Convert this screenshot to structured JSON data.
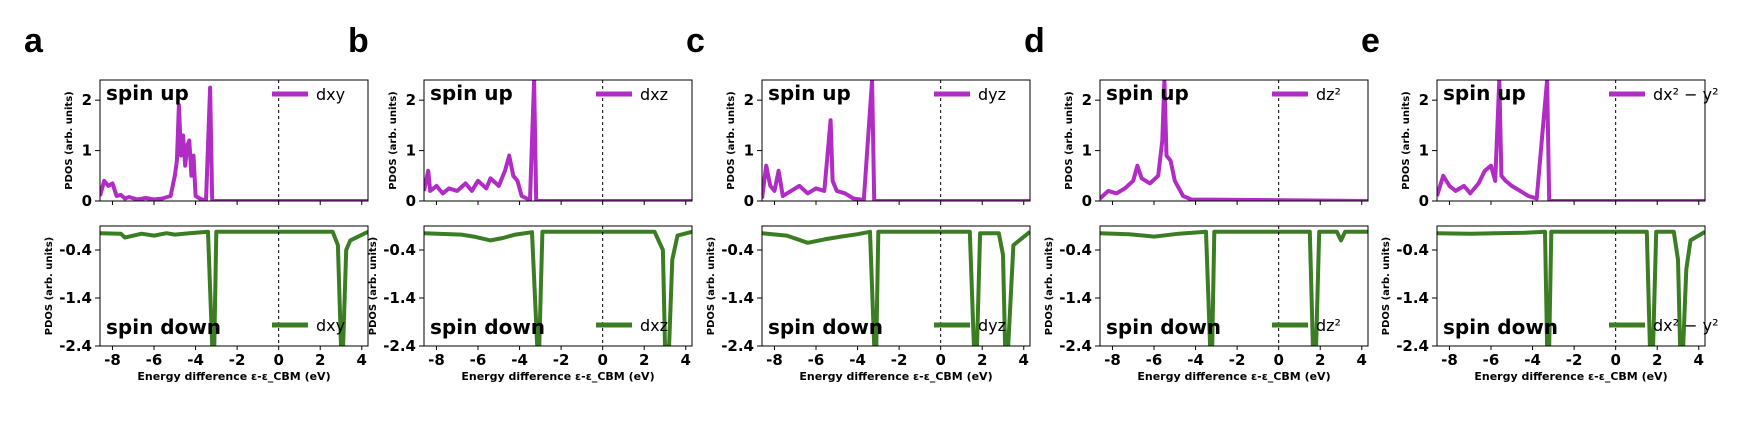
{
  "colors": {
    "up": "#b12cc4",
    "down": "#3b7d23",
    "axis": "#000000"
  },
  "chart_data": [
    {
      "type": "line",
      "panel_label": "a",
      "orbital_legend": "dxy",
      "xlabel": "Energy difference ε-ε_CBM (eV)",
      "ylabel": "PDOS (arb. units)",
      "xlim": [
        -8.6,
        4.3
      ],
      "xticks": [
        "-8",
        "-6",
        "-4",
        "-2",
        "0",
        "2",
        "4"
      ],
      "title_up": "spin up",
      "title_down": "spin down",
      "up": {
        "ylim": [
          0,
          2.4
        ],
        "yticks": [
          "0",
          "1",
          "2"
        ],
        "points": [
          [
            -8.6,
            0.1
          ],
          [
            -8.4,
            0.4
          ],
          [
            -8.2,
            0.3
          ],
          [
            -8.0,
            0.35
          ],
          [
            -7.8,
            0.1
          ],
          [
            -7.6,
            0.12
          ],
          [
            -7.4,
            0.05
          ],
          [
            -7.2,
            0.08
          ],
          [
            -6.8,
            0.03
          ],
          [
            -6.4,
            0.06
          ],
          [
            -6.0,
            0.03
          ],
          [
            -5.6,
            0.05
          ],
          [
            -5.2,
            0.1
          ],
          [
            -5.0,
            0.5
          ],
          [
            -4.9,
            0.8
          ],
          [
            -4.8,
            1.9
          ],
          [
            -4.7,
            0.9
          ],
          [
            -4.6,
            1.3
          ],
          [
            -4.5,
            0.7
          ],
          [
            -4.4,
            1.1
          ],
          [
            -4.3,
            1.2
          ],
          [
            -4.2,
            0.5
          ],
          [
            -4.1,
            0.9
          ],
          [
            -4.0,
            0.1
          ],
          [
            -3.8,
            0.05
          ],
          [
            -3.5,
            0.0
          ],
          [
            -3.3,
            2.25
          ],
          [
            -3.2,
            0.0
          ],
          [
            4.3,
            0.0
          ]
        ]
      },
      "down": {
        "ylim": [
          -2.4,
          0.1
        ],
        "yticks": [
          "-0.4",
          "-1.4",
          "-2.4"
        ],
        "points": [
          [
            -8.6,
            -0.05
          ],
          [
            -7.6,
            -0.06
          ],
          [
            -7.4,
            -0.14
          ],
          [
            -6.6,
            -0.06
          ],
          [
            -6.0,
            -0.1
          ],
          [
            -5.4,
            -0.05
          ],
          [
            -5.0,
            -0.08
          ],
          [
            -4.3,
            -0.05
          ],
          [
            -3.4,
            -0.02
          ],
          [
            -3.2,
            -2.4
          ],
          [
            -3.1,
            -2.4
          ],
          [
            -3.0,
            -0.02
          ],
          [
            2.6,
            -0.02
          ],
          [
            2.85,
            -0.3
          ],
          [
            3.0,
            -2.4
          ],
          [
            3.1,
            -2.4
          ],
          [
            3.25,
            -0.4
          ],
          [
            3.45,
            -0.2
          ],
          [
            4.3,
            -0.02
          ]
        ]
      }
    },
    {
      "type": "line",
      "panel_label": "b",
      "orbital_legend": "dxz",
      "xlabel": "Energy difference ε-ε_CBM (eV)",
      "ylabel": "PDOS (arb. units)",
      "xlim": [
        -8.6,
        4.3
      ],
      "xticks": [
        "-8",
        "-6",
        "-4",
        "-2",
        "0",
        "2",
        "4"
      ],
      "title_up": "spin up",
      "title_down": "spin down",
      "up": {
        "ylim": [
          0,
          2.4
        ],
        "yticks": [
          "0",
          "1",
          "2"
        ],
        "points": [
          [
            -8.6,
            0.2
          ],
          [
            -8.4,
            0.6
          ],
          [
            -8.3,
            0.2
          ],
          [
            -8.0,
            0.3
          ],
          [
            -7.7,
            0.15
          ],
          [
            -7.4,
            0.25
          ],
          [
            -7.0,
            0.2
          ],
          [
            -6.6,
            0.35
          ],
          [
            -6.3,
            0.2
          ],
          [
            -6.0,
            0.4
          ],
          [
            -5.6,
            0.25
          ],
          [
            -5.4,
            0.45
          ],
          [
            -5.0,
            0.3
          ],
          [
            -4.7,
            0.6
          ],
          [
            -4.5,
            0.9
          ],
          [
            -4.3,
            0.5
          ],
          [
            -4.1,
            0.4
          ],
          [
            -3.9,
            0.1
          ],
          [
            -3.5,
            0.02
          ],
          [
            -3.3,
            2.4
          ],
          [
            -3.2,
            0.0
          ],
          [
            4.3,
            0.0
          ]
        ]
      },
      "down": {
        "ylim": [
          -2.4,
          0.1
        ],
        "yticks": [
          "-0.4",
          "-1.4",
          "-2.4"
        ],
        "points": [
          [
            -8.6,
            -0.05
          ],
          [
            -6.8,
            -0.08
          ],
          [
            -6.2,
            -0.12
          ],
          [
            -5.4,
            -0.2
          ],
          [
            -4.8,
            -0.15
          ],
          [
            -4.2,
            -0.08
          ],
          [
            -3.4,
            -0.03
          ],
          [
            -3.15,
            -2.4
          ],
          [
            -3.05,
            -2.4
          ],
          [
            -2.9,
            -0.02
          ],
          [
            2.5,
            -0.02
          ],
          [
            2.9,
            -0.4
          ],
          [
            3.0,
            -2.4
          ],
          [
            3.2,
            -2.4
          ],
          [
            3.35,
            -0.6
          ],
          [
            3.6,
            -0.1
          ],
          [
            4.3,
            -0.02
          ]
        ]
      }
    },
    {
      "type": "line",
      "panel_label": "c",
      "orbital_legend": "dyz",
      "xlabel": "Energy difference ε-ε_CBM (eV)",
      "ylabel": "PDOS (arb. units)",
      "xlim": [
        -8.6,
        4.3
      ],
      "xticks": [
        "-8",
        "-6",
        "-4",
        "-2",
        "0",
        "2",
        "4"
      ],
      "title_up": "spin up",
      "title_down": "spin down",
      "up": {
        "ylim": [
          0,
          2.4
        ],
        "yticks": [
          "0",
          "1",
          "2"
        ],
        "points": [
          [
            -8.6,
            0.05
          ],
          [
            -8.4,
            0.7
          ],
          [
            -8.2,
            0.3
          ],
          [
            -8.0,
            0.2
          ],
          [
            -7.8,
            0.6
          ],
          [
            -7.6,
            0.1
          ],
          [
            -7.2,
            0.2
          ],
          [
            -6.8,
            0.3
          ],
          [
            -6.4,
            0.15
          ],
          [
            -6.0,
            0.25
          ],
          [
            -5.6,
            0.2
          ],
          [
            -5.3,
            1.6
          ],
          [
            -5.2,
            0.4
          ],
          [
            -5.0,
            0.2
          ],
          [
            -4.6,
            0.15
          ],
          [
            -4.2,
            0.05
          ],
          [
            -3.7,
            0.02
          ],
          [
            -3.3,
            2.4
          ],
          [
            -3.2,
            0.0
          ],
          [
            4.3,
            0.0
          ]
        ]
      },
      "down": {
        "ylim": [
          -2.4,
          0.1
        ],
        "yticks": [
          "-0.4",
          "-1.4",
          "-2.4"
        ],
        "points": [
          [
            -8.6,
            -0.05
          ],
          [
            -7.4,
            -0.1
          ],
          [
            -6.4,
            -0.25
          ],
          [
            -5.6,
            -0.18
          ],
          [
            -4.8,
            -0.12
          ],
          [
            -4.0,
            -0.07
          ],
          [
            -3.4,
            -0.02
          ],
          [
            -3.2,
            -2.4
          ],
          [
            -3.1,
            -2.4
          ],
          [
            -3.0,
            -0.02
          ],
          [
            1.4,
            -0.02
          ],
          [
            1.6,
            -2.4
          ],
          [
            1.75,
            -2.4
          ],
          [
            1.9,
            -0.05
          ],
          [
            2.8,
            -0.05
          ],
          [
            3.0,
            -0.5
          ],
          [
            3.1,
            -2.4
          ],
          [
            3.25,
            -2.4
          ],
          [
            3.5,
            -0.3
          ],
          [
            4.3,
            -0.02
          ]
        ]
      }
    },
    {
      "type": "line",
      "panel_label": "d",
      "orbital_legend": "dz²",
      "xlabel": "Energy difference ε-ε_CBM (eV)",
      "ylabel": "PDOS (arb. units)",
      "xlim": [
        -8.6,
        4.3
      ],
      "xticks": [
        "-8",
        "-6",
        "-4",
        "-2",
        "0",
        "2",
        "4"
      ],
      "title_up": "spin up",
      "title_down": "spin down",
      "up": {
        "ylim": [
          0,
          2.4
        ],
        "yticks": [
          "0",
          "1",
          "2"
        ],
        "points": [
          [
            -8.6,
            0.05
          ],
          [
            -8.2,
            0.2
          ],
          [
            -7.8,
            0.15
          ],
          [
            -7.4,
            0.25
          ],
          [
            -7.0,
            0.4
          ],
          [
            -6.8,
            0.7
          ],
          [
            -6.6,
            0.45
          ],
          [
            -6.2,
            0.35
          ],
          [
            -5.8,
            0.5
          ],
          [
            -5.6,
            1.2
          ],
          [
            -5.5,
            2.4
          ],
          [
            -5.4,
            0.9
          ],
          [
            -5.2,
            0.8
          ],
          [
            -5.0,
            0.4
          ],
          [
            -4.6,
            0.1
          ],
          [
            -4.2,
            0.03
          ],
          [
            4.3,
            0.0
          ]
        ]
      },
      "down": {
        "ylim": [
          -2.4,
          0.1
        ],
        "yticks": [
          "-0.4",
          "-1.4",
          "-2.4"
        ],
        "points": [
          [
            -8.6,
            -0.05
          ],
          [
            -7.2,
            -0.07
          ],
          [
            -6.0,
            -0.12
          ],
          [
            -4.8,
            -0.06
          ],
          [
            -3.5,
            -0.02
          ],
          [
            -3.3,
            -2.4
          ],
          [
            -3.2,
            -2.4
          ],
          [
            -3.1,
            -0.02
          ],
          [
            1.5,
            -0.02
          ],
          [
            1.65,
            -2.4
          ],
          [
            1.8,
            -2.4
          ],
          [
            1.95,
            -0.02
          ],
          [
            2.8,
            -0.02
          ],
          [
            3.0,
            -0.2
          ],
          [
            3.2,
            -0.02
          ],
          [
            4.3,
            -0.02
          ]
        ]
      }
    },
    {
      "type": "line",
      "panel_label": "e",
      "orbital_legend": "dx² − y²",
      "xlabel": "Energy difference ε-ε_CBM (eV)",
      "ylabel": "PDOS (arb. units)",
      "xlim": [
        -8.6,
        4.3
      ],
      "xticks": [
        "-8",
        "-6",
        "-4",
        "-2",
        "0",
        "2",
        "4"
      ],
      "title_up": "spin up",
      "title_down": "spin down",
      "up": {
        "ylim": [
          0,
          2.4
        ],
        "yticks": [
          "0",
          "1",
          "2"
        ],
        "points": [
          [
            -8.6,
            0.1
          ],
          [
            -8.3,
            0.5
          ],
          [
            -8.0,
            0.3
          ],
          [
            -7.7,
            0.2
          ],
          [
            -7.3,
            0.3
          ],
          [
            -7.0,
            0.15
          ],
          [
            -6.6,
            0.35
          ],
          [
            -6.3,
            0.6
          ],
          [
            -6.0,
            0.7
          ],
          [
            -5.8,
            0.4
          ],
          [
            -5.6,
            2.4
          ],
          [
            -5.5,
            0.5
          ],
          [
            -5.3,
            0.4
          ],
          [
            -5.0,
            0.3
          ],
          [
            -4.6,
            0.2
          ],
          [
            -4.2,
            0.1
          ],
          [
            -3.8,
            0.05
          ],
          [
            -3.3,
            2.4
          ],
          [
            -3.2,
            0.0
          ],
          [
            4.3,
            0.0
          ]
        ]
      },
      "down": {
        "ylim": [
          -2.4,
          0.1
        ],
        "yticks": [
          "-0.4",
          "-1.4",
          "-2.4"
        ],
        "points": [
          [
            -8.6,
            -0.05
          ],
          [
            -7.0,
            -0.06
          ],
          [
            -5.8,
            -0.05
          ],
          [
            -4.4,
            -0.04
          ],
          [
            -3.4,
            -0.02
          ],
          [
            -3.3,
            -2.4
          ],
          [
            -3.2,
            -2.4
          ],
          [
            -3.1,
            -0.02
          ],
          [
            1.5,
            -0.02
          ],
          [
            1.65,
            -2.4
          ],
          [
            1.8,
            -2.4
          ],
          [
            1.95,
            -0.02
          ],
          [
            2.8,
            -0.02
          ],
          [
            3.0,
            -0.6
          ],
          [
            3.1,
            -2.4
          ],
          [
            3.25,
            -2.4
          ],
          [
            3.4,
            -0.8
          ],
          [
            3.6,
            -0.2
          ],
          [
            4.3,
            -0.02
          ]
        ]
      }
    }
  ]
}
